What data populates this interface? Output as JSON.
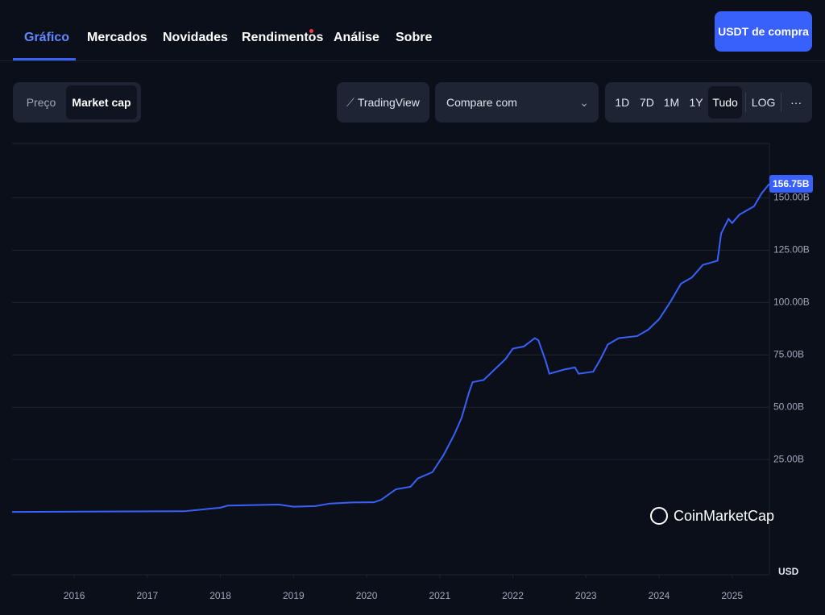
{
  "ui": {
    "tabs": [
      "Gráfico",
      "Mercados",
      "Novidades",
      "Rendimentos",
      "Análise",
      "Sobre"
    ],
    "buy_button": "USDT de compra",
    "toggle": [
      "Preço",
      "Market cap"
    ],
    "tradingview": "TradingView",
    "compare": "Compare com",
    "ranges": [
      "1D",
      "7D",
      "1M",
      "1Y",
      "Tudo",
      "LOG",
      "···"
    ],
    "watermark": "CoinMarketCap",
    "currency": "USD"
  },
  "chart_data": {
    "type": "line",
    "x": [
      2015.15,
      2017.5,
      2018.0,
      2018.1,
      2018.8,
      2019.0,
      2019.3,
      2019.5,
      2019.8,
      2020.1,
      2020.2,
      2020.4,
      2020.6,
      2020.7,
      2020.9,
      2021.05,
      2021.2,
      2021.3,
      2021.4,
      2021.45,
      2021.6,
      2021.75,
      2021.9,
      2022.0,
      2022.15,
      2022.3,
      2022.35,
      2022.45,
      2022.5,
      2022.7,
      2022.85,
      2022.9,
      2023.1,
      2023.2,
      2023.3,
      2023.45,
      2023.7,
      2023.85,
      2024.0,
      2024.15,
      2024.3,
      2024.45,
      2024.6,
      2024.8,
      2024.85,
      2024.95,
      2025.0,
      2025.1,
      2025.3,
      2025.4,
      2025.51
    ],
    "series": [
      {
        "name": "Market cap",
        "color": "#3861fb",
        "values": [
          0,
          0.3,
          2,
          3,
          3.5,
          2.5,
          2.8,
          4,
          4.5,
          4.6,
          5.8,
          10.8,
          12,
          16,
          19,
          27,
          37,
          45,
          57,
          62,
          63,
          68,
          73,
          78,
          79,
          83,
          82,
          72,
          66,
          68,
          69,
          66,
          67,
          73,
          80,
          83,
          84,
          87,
          92,
          100,
          109,
          112,
          118,
          120,
          133,
          140,
          138,
          142,
          146,
          152,
          156.75
        ]
      }
    ],
    "xlim": [
      2015.15,
      2025.51
    ],
    "xticks": [
      2016,
      2017,
      2018,
      2019,
      2020,
      2021,
      2022,
      2023,
      2024,
      2025
    ],
    "ylim": [
      -30,
      176
    ],
    "yticks": [
      {
        "value": 25,
        "label": "25.00B"
      },
      {
        "value": 50,
        "label": "50.00B"
      },
      {
        "value": 75,
        "label": "75.00B"
      },
      {
        "value": 100,
        "label": "100.00B"
      },
      {
        "value": 125,
        "label": "125.00B"
      },
      {
        "value": 150,
        "label": "150.00B"
      }
    ],
    "grid": true,
    "last_value": 156.75,
    "last_value_label": "156.75B"
  }
}
